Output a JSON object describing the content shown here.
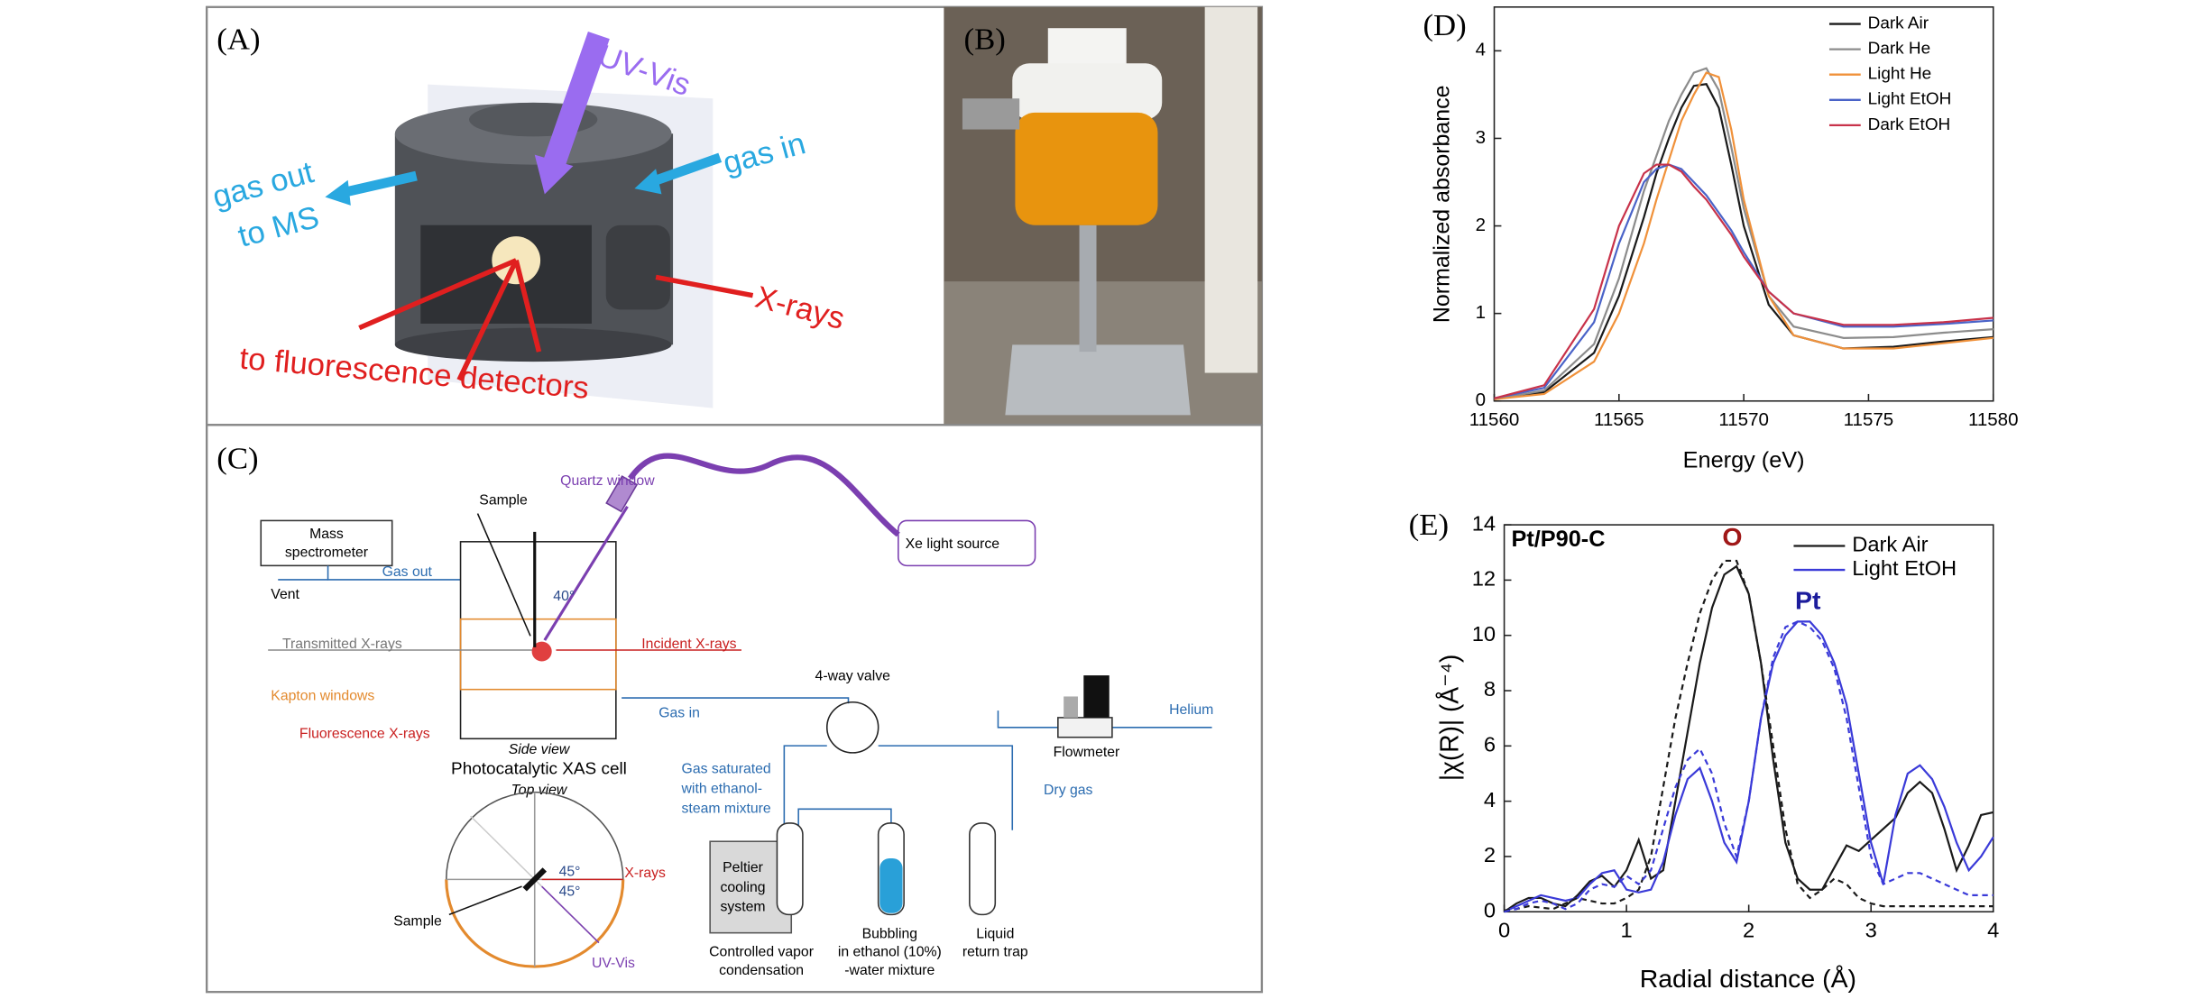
{
  "panel_a": {
    "label": "(A)",
    "uv_vis": "UV-Vis",
    "gas_out_1": "gas out",
    "gas_out_2": "to MS",
    "gas_in": "gas in",
    "x_rays": "X-rays",
    "detectors": "to fluorescence detectors"
  },
  "panel_b": {
    "label": "(B)"
  },
  "panel_c": {
    "label": "(C)",
    "sample": "Sample",
    "quartz": "Quartz window",
    "ms_1": "Mass",
    "ms_2": "spectrometer",
    "gas_out": "Gas out",
    "vent": "Vent",
    "angle_40": "40°",
    "xe": "Xe light source",
    "transmitted": "Transmitted X-rays",
    "incident": "Incident X-rays",
    "kapton": "Kapton windows",
    "fluorescence": "Fluorescence X-rays",
    "side_view": "Side view",
    "cell": "Photocatalytic XAS cell",
    "top_view": "Top view",
    "gas_in": "Gas in",
    "valve": "4-way valve",
    "helium": "Helium",
    "flowmeter": "Flowmeter",
    "sat_1": "Gas saturated",
    "sat_2": "with ethanol-",
    "sat_3": "steam mixture",
    "dry_gas": "Dry gas",
    "peltier_1": "Peltier",
    "peltier_2": "cooling",
    "peltier_3": "system",
    "bubbling_1": "Bubbling",
    "bubbling_2": "in ethanol (10%)",
    "bubbling_3": "-water mixture",
    "liquid_1": "Liquid",
    "liquid_2": "return trap",
    "controlled_1": "Controlled vapor",
    "controlled_2": "condensation",
    "top_sample": "Sample",
    "top_xrays": "X-rays",
    "top_uvvis": "UV-Vis",
    "angle_45a": "45°",
    "angle_45b": "45°"
  },
  "chart_data": [
    {
      "type": "line",
      "label": "(D)",
      "xlabel": "Energy (eV)",
      "ylabel": "Normalized absorbance",
      "x": [
        11560,
        11562,
        11564,
        11565,
        11566,
        11566.5,
        11567,
        11567.5,
        11568,
        11568.5,
        11569,
        11569.5,
        11570,
        11571,
        11572,
        11574,
        11576,
        11578,
        11580
      ],
      "series": [
        {
          "name": "Dark Air",
          "color": "#1a1a1a",
          "values": [
            0.02,
            0.1,
            0.55,
            1.2,
            2.1,
            2.6,
            3.0,
            3.35,
            3.6,
            3.62,
            3.35,
            2.7,
            2.0,
            1.1,
            0.75,
            0.6,
            0.62,
            0.68,
            0.73
          ]
        },
        {
          "name": "Dark He",
          "color": "#8c8c8c",
          "values": [
            0.02,
            0.12,
            0.65,
            1.4,
            2.4,
            2.8,
            3.2,
            3.5,
            3.75,
            3.8,
            3.55,
            2.9,
            2.2,
            1.2,
            0.85,
            0.72,
            0.73,
            0.78,
            0.82
          ]
        },
        {
          "name": "Light He",
          "color": "#f0913a",
          "values": [
            0.02,
            0.08,
            0.45,
            1.0,
            1.8,
            2.3,
            2.75,
            3.2,
            3.5,
            3.75,
            3.7,
            3.1,
            2.3,
            1.2,
            0.75,
            0.6,
            0.6,
            0.66,
            0.72
          ]
        },
        {
          "name": "Light EtOH",
          "color": "#4a63c8",
          "values": [
            0.03,
            0.15,
            0.9,
            1.8,
            2.5,
            2.65,
            2.7,
            2.65,
            2.5,
            2.35,
            2.15,
            1.95,
            1.7,
            1.25,
            1.0,
            0.85,
            0.85,
            0.88,
            0.92
          ]
        },
        {
          "name": "Dark EtOH",
          "color": "#c8324a",
          "values": [
            0.03,
            0.18,
            1.05,
            2.0,
            2.6,
            2.7,
            2.7,
            2.62,
            2.45,
            2.3,
            2.1,
            1.9,
            1.65,
            1.25,
            1.0,
            0.87,
            0.87,
            0.9,
            0.95
          ]
        }
      ],
      "xlim": [
        11560,
        11580
      ],
      "xticks": [
        11560,
        11565,
        11570,
        11575,
        11580
      ],
      "ylim": [
        0,
        4.5
      ],
      "yticks": [
        0,
        1,
        2,
        3,
        4
      ],
      "legend": "upper right"
    },
    {
      "type": "line",
      "label": "(E)",
      "title": "Pt/P90-C",
      "xlabel": "Radial distance (Å)",
      "ylabel": "|χ(R)| (Å⁻⁴)",
      "annotations": [
        {
          "text": "O",
          "color": "#a01818"
        },
        {
          "text": "Pt",
          "color": "#1c1c9c"
        }
      ],
      "x": [
        0,
        0.1,
        0.2,
        0.3,
        0.4,
        0.5,
        0.6,
        0.7,
        0.8,
        0.9,
        1.0,
        1.1,
        1.2,
        1.3,
        1.4,
        1.5,
        1.6,
        1.7,
        1.8,
        1.9,
        2.0,
        2.1,
        2.2,
        2.3,
        2.4,
        2.5,
        2.6,
        2.7,
        2.8,
        2.9,
        3.0,
        3.1,
        3.2,
        3.3,
        3.4,
        3.5,
        3.6,
        3.7,
        3.8,
        3.9,
        4.0
      ],
      "series": [
        {
          "name": "Dark Air",
          "color": "#1a1a1a",
          "values": [
            0,
            0.3,
            0.5,
            0.5,
            0.3,
            0.2,
            0.6,
            1.1,
            1.3,
            0.9,
            1.5,
            2.6,
            1.2,
            1.5,
            4.0,
            6.5,
            9.0,
            11.0,
            12.2,
            12.5,
            11.5,
            9.0,
            5.5,
            2.5,
            1.2,
            0.8,
            0.8,
            1.6,
            2.4,
            2.2,
            2.6,
            3.0,
            3.4,
            4.3,
            4.7,
            4.3,
            3.0,
            1.5,
            2.4,
            3.5,
            3.6
          ]
        },
        {
          "name": "Light EtOH",
          "color": "#3a3ad8",
          "values": [
            0,
            0.2,
            0.4,
            0.6,
            0.5,
            0.4,
            0.5,
            1.0,
            1.4,
            1.5,
            0.8,
            0.7,
            0.8,
            1.8,
            3.5,
            4.8,
            5.2,
            4.0,
            2.5,
            1.8,
            4.0,
            7.0,
            9.0,
            10.0,
            10.5,
            10.5,
            10.0,
            9.0,
            7.5,
            5.0,
            2.5,
            1.0,
            3.5,
            5.0,
            5.3,
            4.8,
            3.8,
            2.5,
            1.5,
            2.0,
            2.7
          ]
        },
        {
          "color": "#1a1a1a",
          "dash": true,
          "values": [
            0.05,
            0.1,
            0.2,
            0.15,
            0.1,
            0.3,
            0.5,
            0.4,
            0.3,
            0.3,
            0.5,
            0.8,
            2.0,
            4.5,
            7.0,
            9.0,
            10.8,
            12.0,
            12.7,
            12.7,
            11.5,
            9.0,
            6.0,
            3.0,
            1.0,
            0.5,
            0.8,
            1.2,
            1.0,
            0.5,
            0.3,
            0.2,
            0.2,
            0.2,
            0.2,
            0.2,
            0.2,
            0.2,
            0.2,
            0.2,
            0.2
          ]
        },
        {
          "color": "#3a3ad8",
          "dash": true,
          "values": [
            0,
            0.1,
            0.3,
            0.4,
            0.3,
            0.1,
            0.3,
            0.8,
            1.0,
            0.9,
            1.3,
            1.0,
            1.5,
            3.0,
            4.5,
            5.5,
            5.9,
            5.0,
            3.2,
            2.0,
            4.0,
            7.0,
            9.2,
            10.3,
            10.5,
            10.3,
            9.8,
            8.8,
            7.0,
            4.5,
            2.0,
            1.0,
            1.2,
            1.4,
            1.4,
            1.2,
            1.0,
            0.8,
            0.6,
            0.6,
            0.6
          ]
        }
      ],
      "xlim": [
        0,
        4
      ],
      "xticks": [
        0,
        1,
        2,
        3,
        4
      ],
      "ylim": [
        0,
        14
      ],
      "yticks": [
        0,
        2,
        4,
        6,
        8,
        10,
        12,
        14
      ],
      "legend": "upper right"
    }
  ]
}
